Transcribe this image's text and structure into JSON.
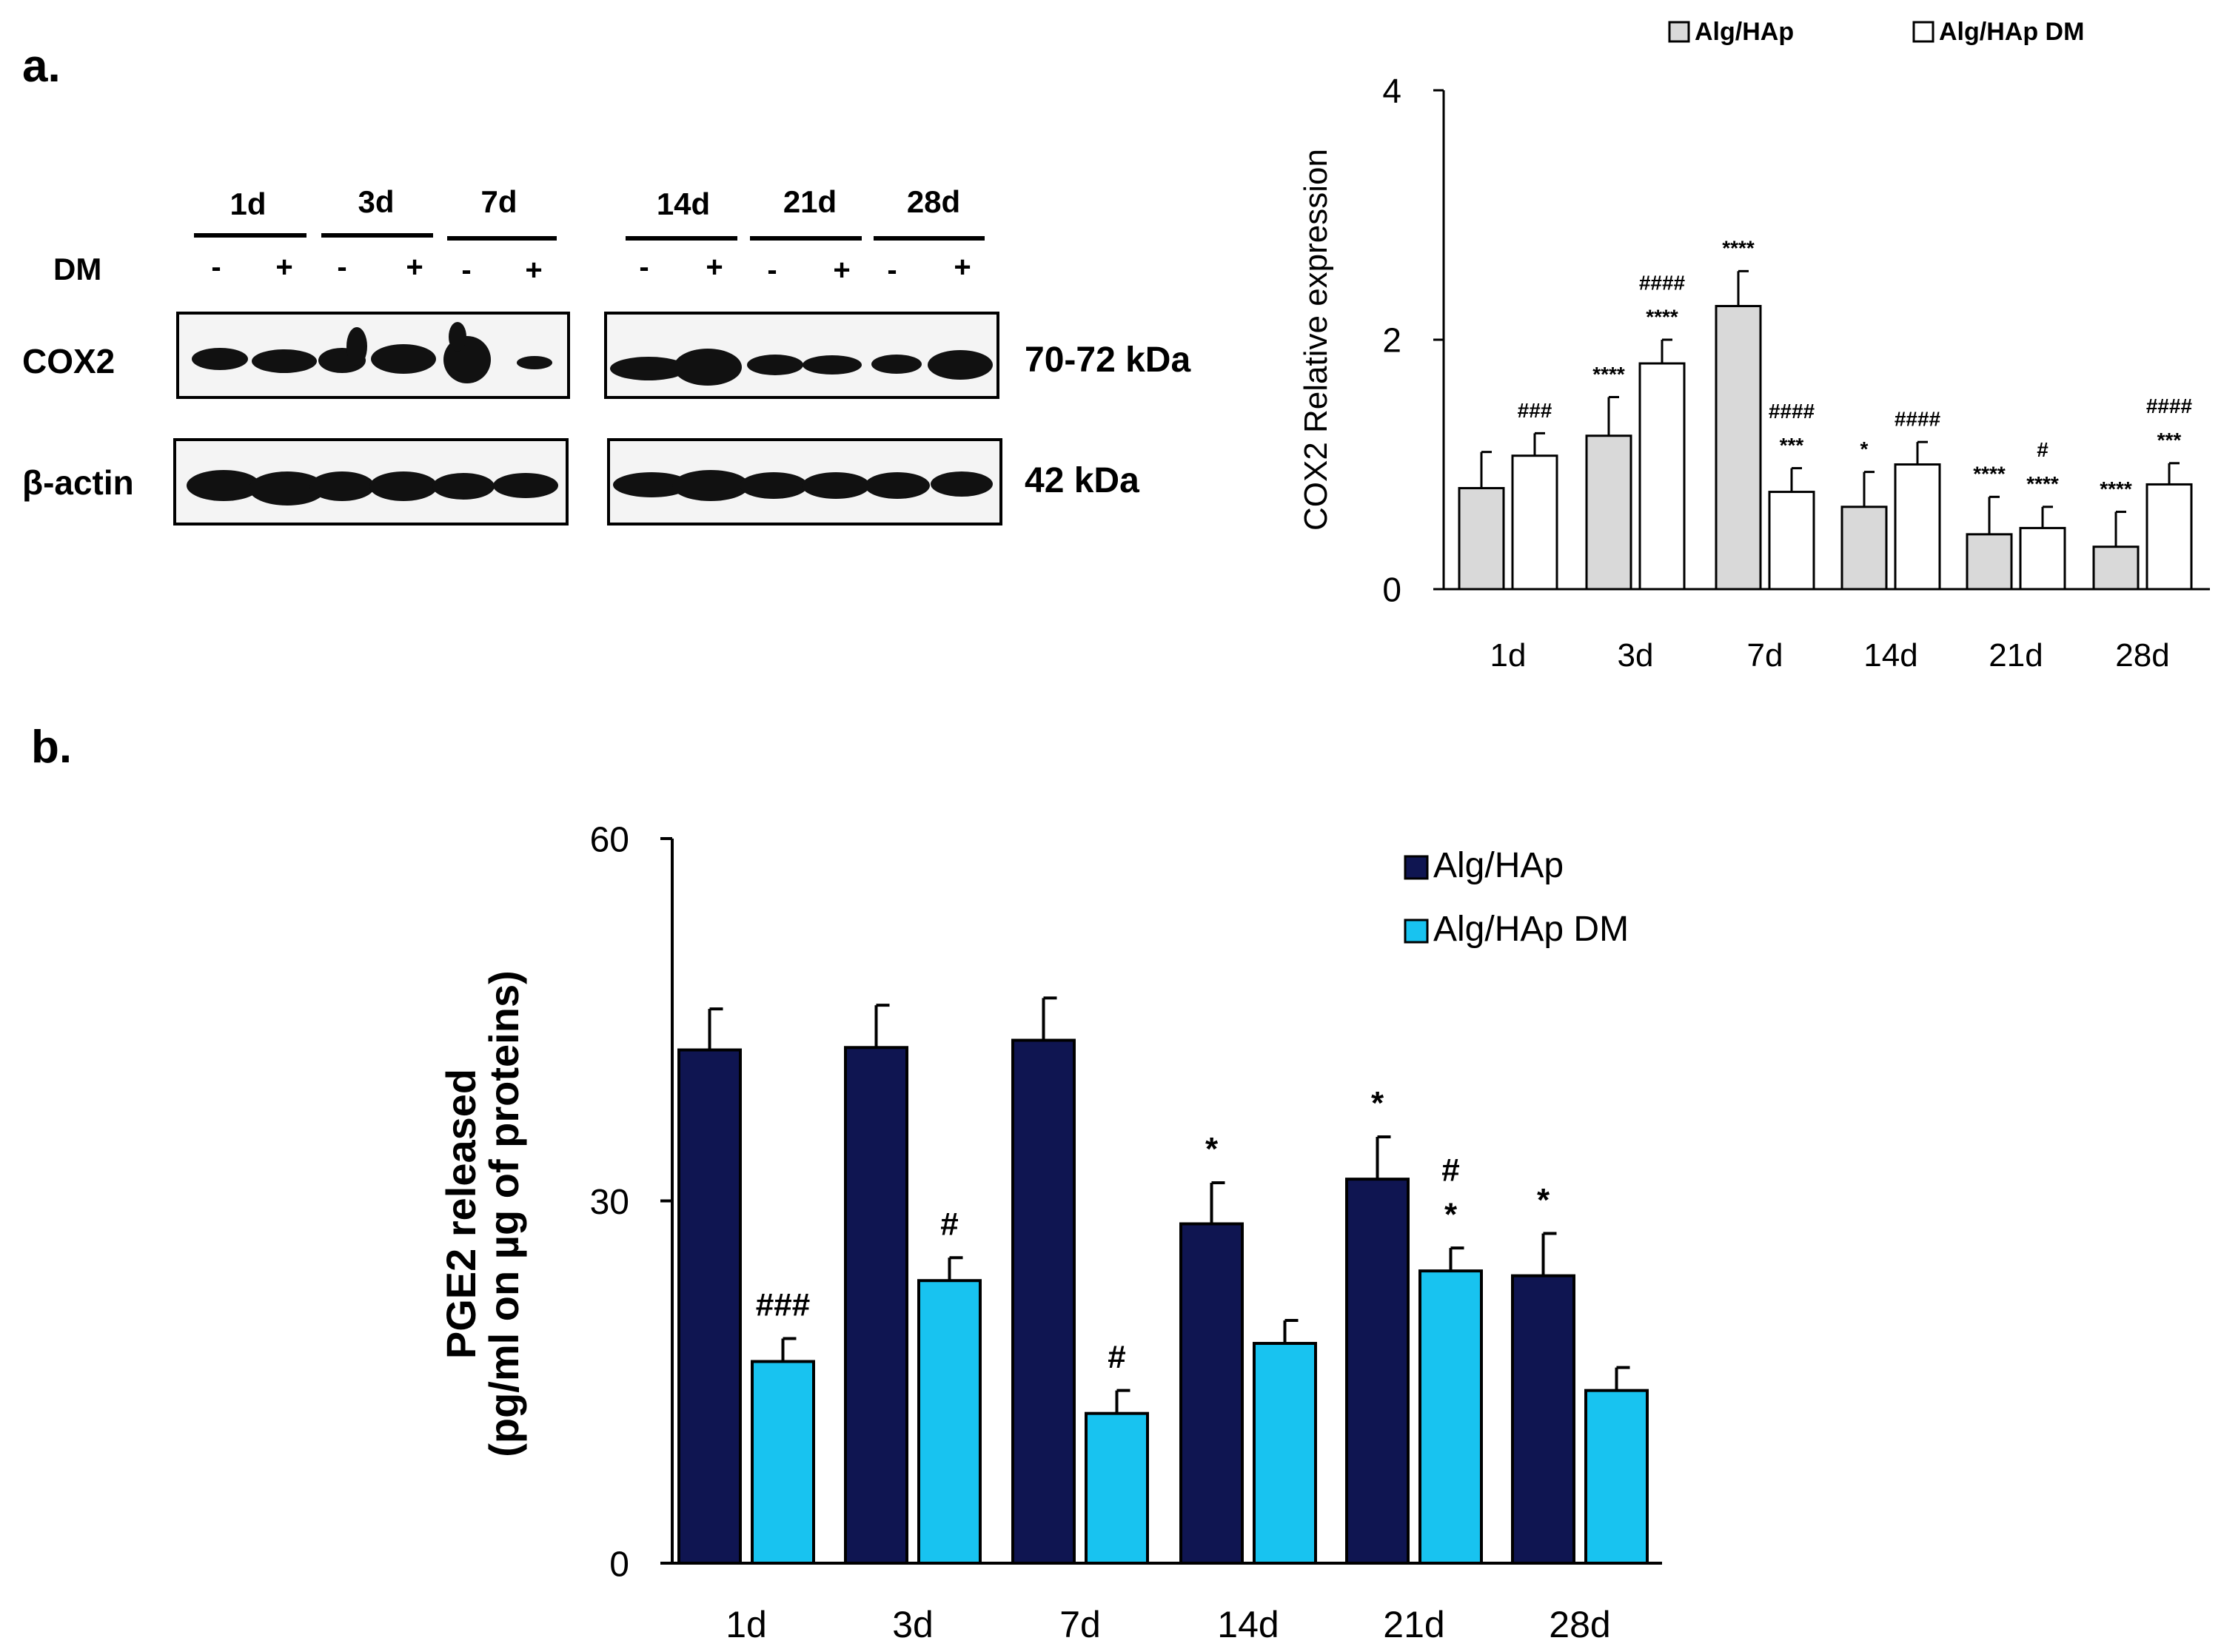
{
  "panels": {
    "a_label": "a.",
    "b_label": "b."
  },
  "blot": {
    "groups_left": [
      "1d",
      "3d",
      "7d"
    ],
    "groups_right": [
      "14d",
      "21d",
      "28d"
    ],
    "dm_label": "DM",
    "dm_signs": [
      "-",
      "+",
      "-",
      "+",
      "-",
      "+",
      "-",
      "+",
      "-",
      "+",
      "-",
      "+"
    ],
    "rows": [
      {
        "name": "COX2",
        "size": "70-72 kDa"
      },
      {
        "name": "β-actin",
        "size": "42 kDa"
      }
    ]
  },
  "chart_data": [
    {
      "type": "bar",
      "id": "cox2",
      "title": "",
      "xlabel": "",
      "ylabel": "COX2 Relative expression",
      "ylim": [
        0,
        4
      ],
      "yticks": [
        0,
        2,
        4
      ],
      "categories": [
        "1d",
        "3d",
        "7d",
        "14d",
        "21d",
        "28d"
      ],
      "legend_position": "top",
      "series": [
        {
          "name": "Alg/HAp",
          "color": "#d9d9d9",
          "values": [
            0.81,
            1.23,
            2.27,
            0.66,
            0.44,
            0.34
          ],
          "errors": [
            0.29,
            0.31,
            0.28,
            0.28,
            0.3,
            0.28
          ],
          "annotations": [
            [],
            [
              "****"
            ],
            [
              "****"
            ],
            [
              "*"
            ],
            [
              "****"
            ],
            [
              "****"
            ]
          ]
        },
        {
          "name": "Alg/HAp DM",
          "color": "#ffffff",
          "values": [
            1.07,
            1.81,
            0.78,
            1.0,
            0.49,
            0.84
          ],
          "errors": [
            0.18,
            0.19,
            0.19,
            0.18,
            0.17,
            0.17
          ],
          "annotations": [
            [
              "###"
            ],
            [
              "****",
              "####"
            ],
            [
              "***",
              "####"
            ],
            [
              "####"
            ],
            [
              "****",
              "#"
            ],
            [
              "***",
              "####"
            ]
          ]
        }
      ]
    },
    {
      "type": "bar",
      "id": "pge2",
      "title": "",
      "xlabel": "",
      "ylabel": "PGE2 released",
      "ylabel2": "(pg/ml on µg of proteins)",
      "ylim": [
        0,
        60
      ],
      "yticks": [
        0,
        30,
        60
      ],
      "categories": [
        "1d",
        "3d",
        "7d",
        "14d",
        "21d",
        "28d"
      ],
      "legend_position": "top-right",
      "series": [
        {
          "name": "Alg/HAp",
          "color": "#0f1551",
          "values": [
            42.5,
            42.7,
            43.3,
            28.1,
            31.8,
            23.8
          ],
          "errors": [
            3.4,
            3.5,
            3.5,
            3.4,
            3.5,
            3.5
          ],
          "annotations": [
            [],
            [],
            [],
            [
              "*"
            ],
            [
              "*"
            ],
            [
              "*"
            ]
          ]
        },
        {
          "name": "Alg/HAp DM",
          "color": "#18c3f0",
          "values": [
            16.7,
            23.4,
            12.4,
            18.2,
            24.2,
            14.3
          ],
          "errors": [
            1.9,
            1.9,
            1.9,
            1.9,
            1.9,
            1.9
          ],
          "annotations": [
            [
              "###"
            ],
            [
              "#"
            ],
            [
              "#"
            ],
            [],
            [
              "*",
              "#"
            ],
            []
          ]
        }
      ]
    }
  ]
}
